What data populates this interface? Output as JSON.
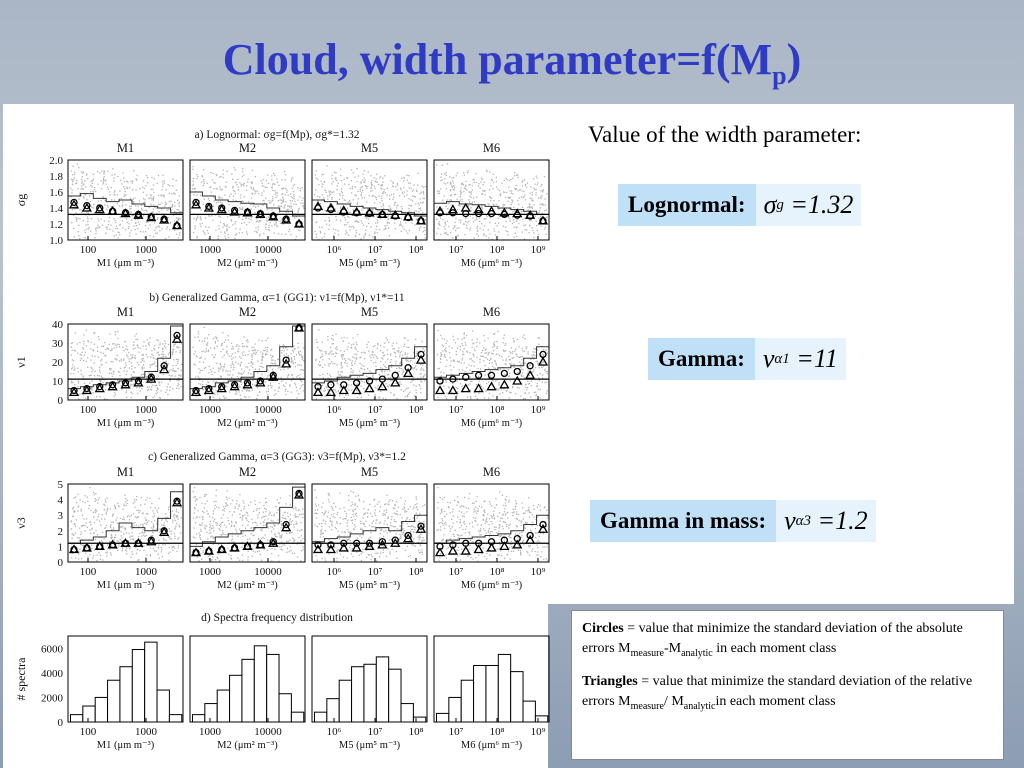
{
  "slide": {
    "title_main": "Cloud, width parameter=f(M",
    "title_sub": "p",
    "title_end": ")",
    "heading": "Value of the width parameter:"
  },
  "equations": [
    {
      "label": "Lognormal:",
      "symbol": "σ",
      "sub": "g",
      "rhs": "=1.32"
    },
    {
      "label": "Gamma:",
      "symbol": "ν",
      "sub": "α1",
      "rhs": "=11"
    },
    {
      "label": "Gamma in mass:",
      "symbol": "ν",
      "sub": "α3",
      "rhs": "=1.2"
    }
  ],
  "legend": {
    "circles_bold": "Circles",
    "circles_text": " = value that minimize the standard deviation of the absolute errors M",
    "circles_s1": "measure",
    "circles_mid": "-M",
    "circles_s2": "analytic",
    "circles_end": " in each moment class",
    "triangles_bold": "Triangles",
    "triangles_text": " = value that minimize the standard deviation of the relative errors M",
    "triangles_s1": "measure",
    "triangles_mid": "/ M",
    "triangles_s2": "analytic",
    "triangles_end": "in each moment class"
  },
  "colors": {
    "title": "#2f3bc4",
    "eq_box": "#bfe0f7",
    "scatter": "#b0b0b0"
  },
  "chart_data": [
    {
      "type": "scatter",
      "title": "a) Lognormal: σg=f(Mp), σg*=1.32",
      "ylabel": "σg",
      "yticks": [
        "2.0",
        "1.8",
        "1.6",
        "1.4",
        "1.2",
        "1.0"
      ],
      "ylim": [
        1.0,
        2.0
      ],
      "reference_line": 1.32,
      "panels": [
        {
          "name": "M1",
          "xlabel": "M1 (μm m⁻³)",
          "xticks": [
            "100",
            "1000"
          ],
          "circles": [
            1.47,
            1.43,
            1.4,
            1.36,
            1.34,
            1.32,
            1.29,
            1.26,
            1.18
          ],
          "triangles": [
            1.44,
            1.4,
            1.38,
            1.36,
            1.33,
            1.31,
            1.28,
            1.25,
            1.18
          ],
          "stairs": [
            1.55,
            1.58,
            1.52,
            1.48,
            1.5,
            1.45,
            1.42,
            1.4,
            1.34
          ]
        },
        {
          "name": "M2",
          "xlabel": "M2 (μm² m⁻³)",
          "xticks": [
            "1000",
            "10000"
          ],
          "circles": [
            1.47,
            1.42,
            1.4,
            1.37,
            1.35,
            1.33,
            1.3,
            1.26,
            1.2
          ],
          "triangles": [
            1.44,
            1.4,
            1.38,
            1.35,
            1.34,
            1.32,
            1.29,
            1.25,
            1.2
          ],
          "stairs": [
            1.6,
            1.55,
            1.5,
            1.48,
            1.46,
            1.45,
            1.4,
            1.36,
            1.3
          ]
        },
        {
          "name": "M5",
          "xlabel": "M5 (μm⁵ m⁻³)",
          "xticks": [
            "10⁶",
            "10⁷",
            "10⁸"
          ],
          "circles": [
            1.4,
            1.38,
            1.35,
            1.34,
            1.33,
            1.32,
            1.3,
            1.28,
            1.24
          ],
          "triangles": [
            1.42,
            1.4,
            1.37,
            1.35,
            1.34,
            1.32,
            1.31,
            1.29,
            1.24
          ],
          "stairs": [
            1.5,
            1.48,
            1.45,
            1.42,
            1.4,
            1.38,
            1.36,
            1.34,
            1.3
          ]
        },
        {
          "name": "M6",
          "xlabel": "M6 (μm⁶ m⁻³)",
          "xticks": [
            "10⁷",
            "10⁸",
            "10⁹"
          ],
          "circles": [
            1.34,
            1.34,
            1.33,
            1.33,
            1.33,
            1.32,
            1.31,
            1.3,
            1.24
          ],
          "triangles": [
            1.36,
            1.38,
            1.4,
            1.38,
            1.36,
            1.34,
            1.33,
            1.31,
            1.24
          ],
          "stairs": [
            1.46,
            1.48,
            1.45,
            1.44,
            1.42,
            1.4,
            1.38,
            1.36,
            1.32
          ]
        }
      ]
    },
    {
      "type": "scatter",
      "title": "b) Generalized Gamma, α=1 (GG1): ν1=f(Mp), ν1*=11",
      "ylabel": "ν1",
      "yticks": [
        "40",
        "30",
        "20",
        "10",
        "0"
      ],
      "ylim": [
        0,
        40
      ],
      "reference_line": 11,
      "panels": [
        {
          "name": "M1",
          "xlabel": "M1 (μm m⁻³)",
          "xticks": [
            "100",
            "1000"
          ],
          "circles": [
            5,
            6,
            7,
            8,
            9,
            10,
            12,
            18,
            34
          ],
          "triangles": [
            4,
            5,
            6,
            7,
            8,
            9,
            11,
            16,
            32
          ],
          "stairs": [
            6,
            7,
            8,
            9,
            10,
            12,
            15,
            22,
            40
          ]
        },
        {
          "name": "M2",
          "xlabel": "M2 (μm² m⁻³)",
          "xticks": [
            "1000",
            "10000"
          ],
          "circles": [
            5,
            6,
            7,
            8,
            9,
            10,
            13,
            21,
            40
          ],
          "triangles": [
            4,
            5,
            6,
            7,
            8,
            9,
            12,
            19,
            38
          ],
          "stairs": [
            6,
            7,
            9,
            10,
            12,
            15,
            18,
            28,
            41
          ]
        },
        {
          "name": "M5",
          "xlabel": "M5 (μm⁵ m⁻³)",
          "xticks": [
            "10⁶",
            "10⁷",
            "10⁸"
          ],
          "circles": [
            7,
            8,
            8,
            9,
            10,
            11,
            13,
            17,
            24
          ],
          "triangles": [
            4,
            4,
            5,
            5,
            6,
            7,
            9,
            14,
            21
          ],
          "stairs": [
            9,
            10,
            12,
            13,
            14,
            16,
            18,
            22,
            28
          ]
        },
        {
          "name": "M6",
          "xlabel": "M6 (μm⁶ m⁻³)",
          "xticks": [
            "10⁷",
            "10⁸",
            "10⁹"
          ],
          "circles": [
            10,
            11,
            12,
            13,
            13,
            14,
            15,
            18,
            24
          ],
          "triangles": [
            5,
            5,
            6,
            6,
            7,
            8,
            10,
            13,
            20
          ],
          "stairs": [
            12,
            13,
            14,
            15,
            16,
            17,
            18,
            22,
            28
          ]
        }
      ]
    },
    {
      "type": "scatter",
      "title": "c) Generalized Gamma, α=3 (GG3): ν3=f(Mp), ν3*=1.2",
      "ylabel": "ν3",
      "yticks": [
        "5",
        "4",
        "3",
        "2",
        "1",
        "0"
      ],
      "ylim": [
        0,
        5
      ],
      "reference_line": 1.2,
      "panels": [
        {
          "name": "M1",
          "xlabel": "M1 (μm m⁻³)",
          "xticks": [
            "100",
            "1000"
          ],
          "circles": [
            0.8,
            0.9,
            1.0,
            1.1,
            1.2,
            1.2,
            1.4,
            2.0,
            3.9
          ],
          "triangles": [
            0.8,
            0.9,
            1.0,
            1.1,
            1.2,
            1.2,
            1.3,
            1.9,
            3.8
          ],
          "stairs": [
            1.2,
            1.4,
            1.6,
            2.0,
            2.5,
            2.2,
            2.0,
            2.8,
            4.5
          ]
        },
        {
          "name": "M2",
          "xlabel": "M2 (μm² m⁻³)",
          "xticks": [
            "1000",
            "10000"
          ],
          "circles": [
            0.6,
            0.7,
            0.8,
            0.9,
            1.0,
            1.1,
            1.3,
            2.4,
            4.4
          ],
          "triangles": [
            0.6,
            0.7,
            0.8,
            0.9,
            1.0,
            1.1,
            1.2,
            2.2,
            4.3
          ],
          "stairs": [
            1.0,
            1.3,
            1.6,
            1.8,
            2.0,
            2.2,
            2.5,
            3.5,
            4.8
          ]
        },
        {
          "name": "M5",
          "xlabel": "M5 (μm⁵ m⁻³)",
          "xticks": [
            "10⁶",
            "10⁷",
            "10⁸"
          ],
          "circles": [
            1.1,
            1.1,
            1.2,
            1.2,
            1.2,
            1.3,
            1.4,
            1.7,
            2.3
          ],
          "triangles": [
            0.8,
            0.8,
            0.9,
            0.9,
            1.0,
            1.1,
            1.2,
            1.5,
            2.1
          ],
          "stairs": [
            1.3,
            1.5,
            1.6,
            1.8,
            2.0,
            2.2,
            2.0,
            2.6,
            3.0
          ]
        },
        {
          "name": "M6",
          "xlabel": "M6 (μm⁶ m⁻³)",
          "xticks": [
            "10⁷",
            "10⁸",
            "10⁹"
          ],
          "circles": [
            1.0,
            1.1,
            1.2,
            1.2,
            1.3,
            1.4,
            1.5,
            1.7,
            2.4
          ],
          "triangles": [
            0.6,
            0.7,
            0.7,
            0.8,
            0.9,
            1.0,
            1.1,
            1.4,
            2.1
          ],
          "stairs": [
            1.2,
            1.4,
            1.5,
            1.6,
            1.7,
            1.8,
            2.0,
            2.4,
            3.0
          ]
        }
      ]
    },
    {
      "type": "bar",
      "title": "d) Spectra frequency distribution",
      "ylabel": "# spectra",
      "yticks": [
        "6000",
        "4000",
        "2000",
        "0"
      ],
      "ylim": [
        0,
        7000
      ],
      "panels": [
        {
          "name": "",
          "xlabel": "M1 (μm m⁻³)",
          "xticks": [
            "100",
            "1000"
          ],
          "values": [
            600,
            1300,
            2000,
            3400,
            4500,
            5900,
            6500,
            2600,
            600
          ]
        },
        {
          "name": "",
          "xlabel": "M2 (μm² m⁻³)",
          "xticks": [
            "1000",
            "10000"
          ],
          "values": [
            600,
            1500,
            2600,
            3800,
            5100,
            6200,
            5500,
            2300,
            800
          ]
        },
        {
          "name": "",
          "xlabel": "M5 (μm⁵ m⁻³)",
          "xticks": [
            "10⁶",
            "10⁷",
            "10⁸"
          ],
          "values": [
            800,
            1900,
            3400,
            4500,
            4700,
            5300,
            4300,
            1500,
            400
          ]
        },
        {
          "name": "",
          "xlabel": "M6 (μm⁶ m⁻³)",
          "xticks": [
            "10⁷",
            "10⁸",
            "10⁹"
          ],
          "values": [
            700,
            2000,
            3400,
            4600,
            4600,
            5500,
            4100,
            1700,
            500
          ]
        }
      ]
    }
  ]
}
